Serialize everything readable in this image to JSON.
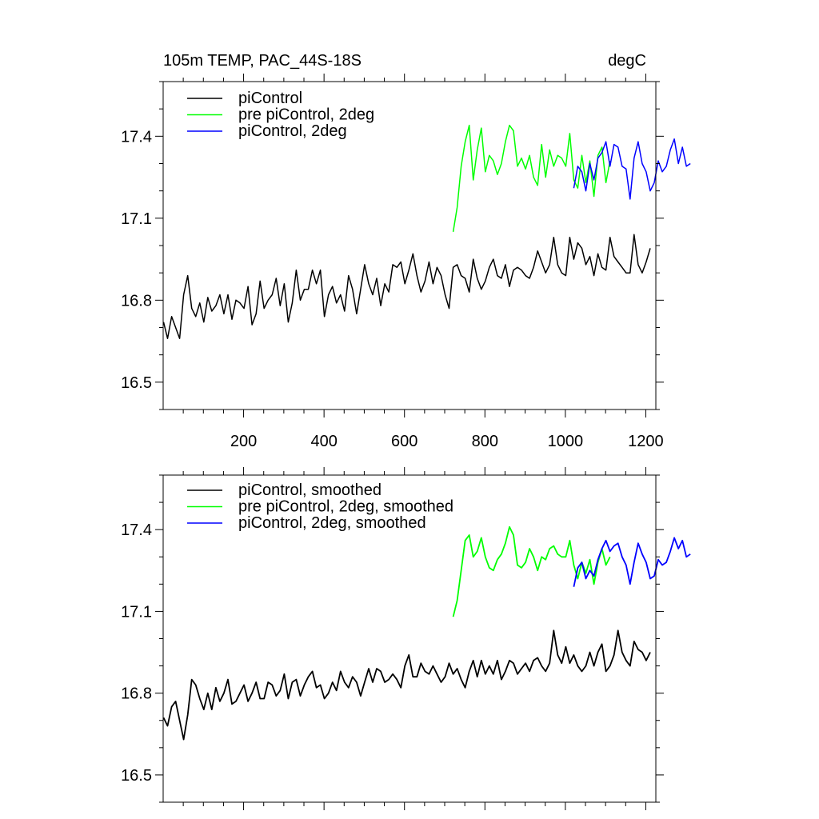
{
  "chart_data": [
    {
      "type": "line",
      "title": "105m TEMP, PAC_44S-18S",
      "units": "degC",
      "xlim": [
        0,
        1225
      ],
      "ylim": [
        16.4,
        17.6
      ],
      "xticks": [
        200,
        400,
        600,
        800,
        1000,
        1200
      ],
      "xtick_labels": [
        "200",
        "400",
        "600",
        "800",
        "1000",
        "1200"
      ],
      "yticks": [
        16.5,
        16.8,
        17.1,
        17.4
      ],
      "ytick_labels": [
        "16.5",
        "16.8",
        "17.1",
        "17.4"
      ],
      "legend_position": "top-left",
      "grid": false,
      "series": [
        {
          "name": "piControl",
          "color": "#000000",
          "x_start": 1,
          "x_step": 10,
          "values": [
            16.72,
            16.66,
            16.74,
            16.7,
            16.66,
            16.82,
            16.89,
            16.77,
            16.74,
            16.79,
            16.72,
            16.81,
            16.76,
            16.78,
            16.82,
            16.75,
            16.82,
            16.73,
            16.8,
            16.79,
            16.77,
            16.85,
            16.71,
            16.75,
            16.87,
            16.77,
            16.8,
            16.82,
            16.88,
            16.78,
            16.86,
            16.72,
            16.79,
            16.91,
            16.8,
            16.84,
            16.84,
            16.91,
            16.86,
            16.91,
            16.74,
            16.82,
            16.85,
            16.79,
            16.82,
            16.76,
            16.89,
            16.84,
            16.75,
            16.84,
            16.93,
            16.86,
            16.82,
            16.88,
            16.78,
            16.86,
            16.83,
            16.93,
            16.92,
            16.94,
            16.86,
            16.91,
            16.97,
            16.89,
            16.83,
            16.87,
            16.94,
            16.86,
            16.92,
            16.89,
            16.82,
            16.77,
            16.92,
            16.93,
            16.89,
            16.88,
            16.83,
            16.95,
            16.88,
            16.84,
            16.87,
            16.92,
            16.95,
            16.89,
            16.88,
            16.93,
            16.85,
            16.91,
            16.92,
            16.91,
            16.89,
            16.88,
            16.92,
            16.98,
            16.94,
            16.9,
            16.93,
            17.03,
            16.93,
            16.9,
            16.89,
            17.03,
            16.95,
            17.01,
            16.99,
            16.93,
            16.96,
            16.89,
            16.97,
            16.92,
            16.91,
            17.03,
            16.96,
            16.94,
            16.92,
            16.9,
            16.9,
            17.04,
            16.93,
            16.9,
            16.94,
            16.99
          ]
        },
        {
          "name": "pre piControl, 2deg",
          "color": "#00ff00",
          "x_start": 721,
          "x_step": 10,
          "values": [
            17.05,
            17.14,
            17.29,
            17.38,
            17.44,
            17.24,
            17.35,
            17.43,
            17.27,
            17.33,
            17.31,
            17.26,
            17.3,
            17.38,
            17.44,
            17.42,
            17.29,
            17.32,
            17.28,
            17.33,
            17.25,
            17.22,
            17.37,
            17.25,
            17.35,
            17.29,
            17.33,
            17.32,
            17.29,
            17.41,
            17.24,
            17.21,
            17.33,
            17.23,
            17.31,
            17.18,
            17.33,
            17.36,
            17.23,
            17.31
          ]
        },
        {
          "name": "piControl, 2deg",
          "color": "#0000ff",
          "x_start": 1021,
          "x_step": 10,
          "values": [
            17.21,
            17.29,
            17.27,
            17.2,
            17.3,
            17.24,
            17.32,
            17.34,
            17.38,
            17.29,
            17.37,
            17.36,
            17.29,
            17.28,
            17.17,
            17.32,
            17.38,
            17.3,
            17.27,
            17.2,
            17.23,
            17.31,
            17.27,
            17.29,
            17.35,
            17.39,
            17.3,
            17.36,
            17.29,
            17.3
          ]
        }
      ]
    },
    {
      "type": "line",
      "xlim": [
        0,
        1225
      ],
      "ylim": [
        16.4,
        17.6
      ],
      "yticks": [
        16.5,
        16.8,
        17.1,
        17.4
      ],
      "ytick_labels": [
        "16.5",
        "16.8",
        "17.1",
        "17.4"
      ],
      "legend_position": "top-left",
      "grid": false,
      "series": [
        {
          "name": "piControl, smoothed",
          "color": "#000000",
          "x_start": 1,
          "x_step": 10,
          "values": [
            16.71,
            16.68,
            16.75,
            16.77,
            16.7,
            16.63,
            16.72,
            16.85,
            16.83,
            16.78,
            16.74,
            16.8,
            16.74,
            16.82,
            16.77,
            16.8,
            16.85,
            16.76,
            16.77,
            16.8,
            16.83,
            16.77,
            16.8,
            16.84,
            16.78,
            16.78,
            16.84,
            16.83,
            16.79,
            16.81,
            16.87,
            16.78,
            16.84,
            16.85,
            16.79,
            16.83,
            16.86,
            16.88,
            16.82,
            16.83,
            16.78,
            16.8,
            16.84,
            16.81,
            16.88,
            16.84,
            16.82,
            16.86,
            16.84,
            16.79,
            16.84,
            16.89,
            16.84,
            16.89,
            16.88,
            16.84,
            16.85,
            16.87,
            16.85,
            16.82,
            16.9,
            16.94,
            16.86,
            16.86,
            16.91,
            16.88,
            16.87,
            16.9,
            16.87,
            16.84,
            16.86,
            16.91,
            16.87,
            16.89,
            16.85,
            16.82,
            16.88,
            16.92,
            16.86,
            16.92,
            16.87,
            16.9,
            16.87,
            16.92,
            16.85,
            16.88,
            16.92,
            16.91,
            16.87,
            16.89,
            16.91,
            16.88,
            16.92,
            16.93,
            16.9,
            16.88,
            16.91,
            17.03,
            16.94,
            16.91,
            16.97,
            16.91,
            16.94,
            16.9,
            16.88,
            16.9,
            16.95,
            16.9,
            16.95,
            16.98,
            16.88,
            16.9,
            16.94,
            17.03,
            16.95,
            16.92,
            16.9,
            16.99,
            16.96,
            16.95,
            16.92,
            16.95
          ]
        },
        {
          "name": "pre piControl, 2deg, smoothed",
          "color": "#00ff00",
          "x_start": 721,
          "x_step": 10,
          "values": [
            17.08,
            17.14,
            17.25,
            17.36,
            17.38,
            17.3,
            17.32,
            17.37,
            17.3,
            17.26,
            17.25,
            17.29,
            17.31,
            17.35,
            17.41,
            17.38,
            17.27,
            17.26,
            17.28,
            17.33,
            17.3,
            17.25,
            17.3,
            17.29,
            17.33,
            17.34,
            17.31,
            17.3,
            17.3,
            17.36,
            17.27,
            17.22,
            17.28,
            17.24,
            17.29,
            17.2,
            17.28,
            17.33,
            17.27,
            17.3
          ]
        },
        {
          "name": "piControl, 2deg, smoothed",
          "color": "#0000ff",
          "x_start": 1021,
          "x_step": 10,
          "values": [
            17.19,
            17.26,
            17.28,
            17.22,
            17.25,
            17.23,
            17.29,
            17.33,
            17.36,
            17.32,
            17.34,
            17.35,
            17.3,
            17.27,
            17.2,
            17.28,
            17.35,
            17.31,
            17.28,
            17.22,
            17.23,
            17.29,
            17.27,
            17.28,
            17.32,
            17.37,
            17.33,
            17.36,
            17.3,
            17.31
          ]
        }
      ]
    }
  ]
}
